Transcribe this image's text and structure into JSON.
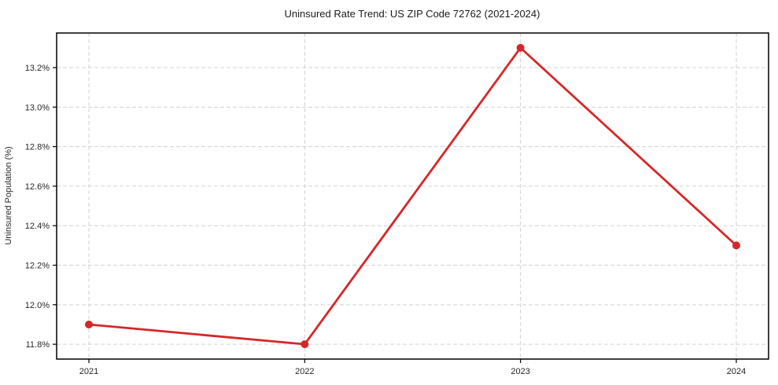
{
  "chart_data": {
    "type": "line",
    "title": "Uninsured Rate Trend: US ZIP Code 72762 (2021-2024)",
    "xlabel": "",
    "ylabel": "Uninsured Population (%)",
    "categories": [
      "2021",
      "2022",
      "2023",
      "2024"
    ],
    "series": [
      {
        "name": "uninsured-rate",
        "values": [
          11.9,
          11.8,
          13.3,
          12.3
        ]
      }
    ],
    "y_ticks": [
      11.8,
      12.0,
      12.2,
      12.4,
      12.6,
      12.8,
      13.0,
      13.2
    ],
    "y_tick_format": "{value}%",
    "ylim": [
      11.725,
      13.375
    ],
    "grid": true,
    "grid_style": "dashed",
    "legend": "none",
    "colors": {
      "line": "#d62728",
      "marker": "#d62728",
      "grid": "#c9c9c9",
      "spine": "#000000",
      "text": "#262626",
      "background": "#ffffff"
    }
  }
}
